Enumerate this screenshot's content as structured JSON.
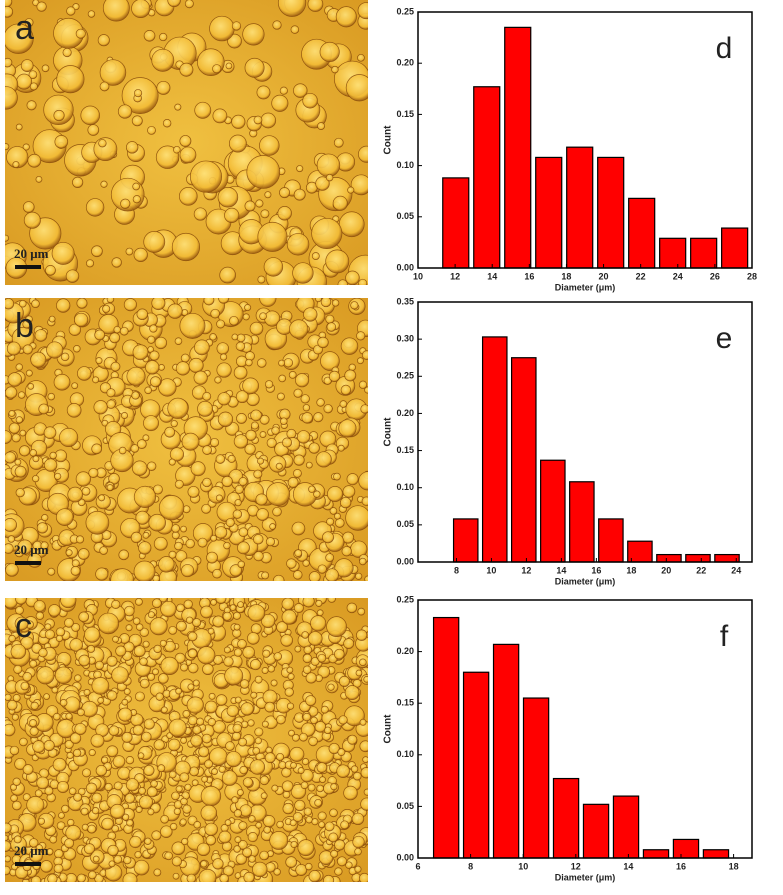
{
  "images": [
    {
      "label": "a",
      "scale_bar": "20 μm"
    },
    {
      "label": "b",
      "scale_bar": "20 μm"
    },
    {
      "label": "c",
      "scale_bar": "20 μm"
    }
  ],
  "chart_data": [
    {
      "type": "histogram",
      "annotation": "d",
      "xlabel": "Diameter (μm)",
      "ylabel": "Count",
      "color": "#ff0000",
      "bins": [
        11.2,
        12.87,
        14.54,
        16.21,
        17.88,
        19.55,
        21.22,
        22.89,
        24.56,
        26.23,
        27.9
      ],
      "values": [
        0.088,
        0.177,
        0.235,
        0.108,
        0.118,
        0.108,
        0.068,
        0.029,
        0.029,
        0.039
      ],
      "xlim": [
        10,
        28
      ],
      "xticks": [
        10,
        12,
        14,
        16,
        18,
        20,
        22,
        24,
        26,
        28
      ],
      "ylim": [
        0,
        0.25
      ],
      "yticks": [
        {
          "value": 0,
          "label": "0.00"
        },
        {
          "value": 0.05,
          "label": "0.05"
        },
        {
          "value": 0.1,
          "label": "0.10"
        },
        {
          "value": 0.15,
          "label": "0.15"
        },
        {
          "value": 0.2,
          "label": "0.20"
        },
        {
          "value": 0.25,
          "label": "0.25"
        }
      ]
    },
    {
      "type": "histogram",
      "annotation": "e",
      "xlabel": "Diameter (μm)",
      "ylabel": "Count",
      "color": "#ff0000",
      "bins": [
        7.7,
        9.36,
        11.02,
        12.68,
        14.34,
        16.0,
        17.66,
        19.32,
        20.98,
        22.64,
        24.3
      ],
      "values": [
        0.058,
        0.303,
        0.275,
        0.137,
        0.108,
        0.058,
        0.028,
        0.01,
        0.01,
        0.01
      ],
      "xlim": [
        5.8,
        24.9
      ],
      "xticks": [
        8,
        10,
        12,
        14,
        16,
        18,
        20,
        22,
        24
      ],
      "ylim": [
        0,
        0.35
      ],
      "yticks": [
        {
          "value": 0,
          "label": "0.00"
        },
        {
          "value": 0.05,
          "label": "0.05"
        },
        {
          "value": 0.1,
          "label": "0.10"
        },
        {
          "value": 0.15,
          "label": "0.15"
        },
        {
          "value": 0.2,
          "label": "0.20"
        },
        {
          "value": 0.25,
          "label": "0.25"
        },
        {
          "value": 0.3,
          "label": "0.30"
        },
        {
          "value": 0.35,
          "label": "0.35"
        }
      ]
    },
    {
      "type": "histogram",
      "annotation": "f",
      "xlabel": "Diameter (μm)",
      "ylabel": "Count",
      "color": "#ff0000",
      "bins": [
        6.5,
        7.64,
        8.78,
        9.92,
        11.06,
        12.2,
        13.34,
        14.48,
        15.62,
        16.76,
        17.9
      ],
      "values": [
        0.233,
        0.18,
        0.207,
        0.155,
        0.077,
        0.052,
        0.06,
        0.008,
        0.018,
        0.008
      ],
      "xlim": [
        6,
        18.7
      ],
      "xticks": [
        6,
        8,
        10,
        12,
        14,
        16,
        18
      ],
      "ylim": [
        0,
        0.25
      ],
      "yticks": [
        {
          "value": 0,
          "label": "0.00"
        },
        {
          "value": 0.05,
          "label": "0.05"
        },
        {
          "value": 0.1,
          "label": "0.10"
        },
        {
          "value": 0.15,
          "label": "0.15"
        },
        {
          "value": 0.2,
          "label": "0.20"
        },
        {
          "value": 0.25,
          "label": "0.25"
        }
      ]
    }
  ]
}
